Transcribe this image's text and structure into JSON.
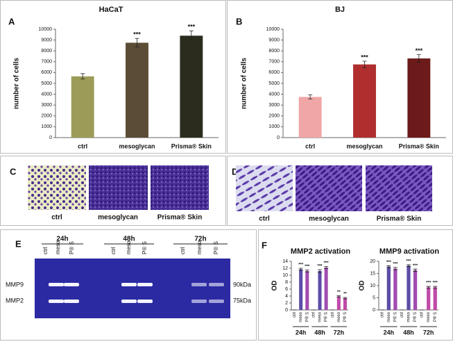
{
  "chart_data": [
    {
      "type": "bar",
      "title": "HaCaT",
      "y_label": "number of cells",
      "categories": [
        "ctrl",
        "mesoglycan",
        "Prisma® Skin"
      ],
      "values": [
        5650,
        8750,
        9400
      ],
      "errors": [
        250,
        400,
        450
      ],
      "colors": [
        "#9c9c58",
        "#5b4c36",
        "#2c2c1e"
      ],
      "significance": [
        null,
        "***",
        "***"
      ],
      "ylim": [
        0,
        10000
      ],
      "yticks": [
        0,
        1000,
        2000,
        3000,
        4000,
        5000,
        6000,
        7000,
        8000,
        9000,
        10000
      ]
    },
    {
      "type": "bar",
      "title": "BJ",
      "y_label": "number of cells",
      "categories": [
        "ctrl",
        "mesoglycan",
        "Prisma® Skin"
      ],
      "values": [
        3750,
        6750,
        7300
      ],
      "errors": [
        200,
        300,
        350
      ],
      "colors": [
        "#f0a6a6",
        "#b02e2e",
        "#6c1a1a"
      ],
      "significance": [
        null,
        "***",
        "***"
      ],
      "ylim": [
        0,
        10000
      ],
      "yticks": [
        0,
        1000,
        2000,
        3000,
        4000,
        5000,
        6000,
        7000,
        8000,
        9000,
        10000
      ]
    },
    {
      "type": "bar",
      "title": "MMP2 activation",
      "y_label": "OD",
      "categories": [
        "ctrl",
        "meso",
        "P® S",
        "ctrl",
        "meso",
        "P® S",
        "ctrl",
        "meso",
        "P® S"
      ],
      "groups": [
        "24h",
        "48h",
        "72h"
      ],
      "values": [
        0,
        11.7,
        11.2,
        0,
        11.2,
        12.2,
        0,
        3.9,
        3.4
      ],
      "errors": [
        0,
        0.3,
        0.3,
        0,
        0.4,
        0.3,
        0,
        0.2,
        0.2
      ],
      "colors": [
        "#5c4ca6",
        "#5c4ca6",
        "#a24cb0",
        "#5c4ca6",
        "#5c4ca6",
        "#a24cb0",
        "#c04aa8",
        "#c04aa8",
        "#c04aa8"
      ],
      "significance": [
        null,
        "***",
        "***",
        null,
        "***",
        "***",
        null,
        "**",
        "**"
      ],
      "ylim": [
        0,
        14
      ],
      "yticks": [
        0,
        2,
        4,
        6,
        8,
        10,
        12,
        14
      ]
    },
    {
      "type": "bar",
      "title": "MMP9 activation",
      "y_label": "OD",
      "categories": [
        "ctrl",
        "meso",
        "P® S",
        "ctrl",
        "meso",
        "P® S",
        "ctrl",
        "meso",
        "P® S"
      ],
      "groups": [
        "24h",
        "48h",
        "72h"
      ],
      "values": [
        0,
        17.8,
        17.0,
        0,
        18.2,
        16.3,
        0,
        9.3,
        9.3
      ],
      "errors": [
        0,
        0.4,
        0.5,
        0,
        0.4,
        0.5,
        0,
        0.4,
        0.4
      ],
      "colors": [
        "#5c4ca6",
        "#5c4ca6",
        "#a24cb0",
        "#5c4ca6",
        "#5c4ca6",
        "#a24cb0",
        "#c04aa8",
        "#c04aa8",
        "#c04aa8"
      ],
      "significance": [
        null,
        "***",
        "***",
        null,
        "***",
        "***",
        null,
        "***",
        "***"
      ],
      "ylim": [
        0,
        20
      ],
      "yticks": [
        0,
        5,
        10,
        15,
        20
      ]
    }
  ],
  "panel_letters": [
    "A",
    "B",
    "C",
    "D",
    "E",
    "F"
  ],
  "panel_c": {
    "labels": [
      "ctrl",
      "mesoglycan",
      "Prisma® Skin"
    ]
  },
  "panel_d": {
    "labels": [
      "ctrl",
      "mesoglycan",
      "Prisma® Skin"
    ]
  },
  "panel_e": {
    "timepoints": [
      "24h",
      "48h",
      "72h"
    ],
    "lanes": [
      "ctrl",
      "meso",
      "P® S"
    ],
    "bands": [
      "MMP9",
      "MMP2"
    ],
    "sizes": [
      "90kDa",
      "75kDa"
    ]
  }
}
